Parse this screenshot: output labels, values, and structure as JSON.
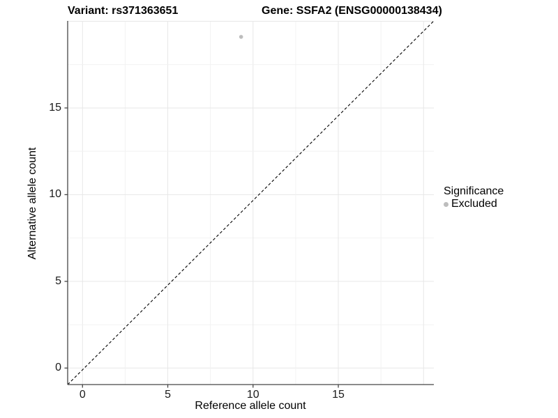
{
  "title": {
    "variant": "Variant: rs371363651",
    "gene": "Gene: SSFA2 (ENSG00000138434)"
  },
  "axes": {
    "x": {
      "label": "Reference allele count",
      "tick_values": [
        0,
        5,
        10,
        15
      ],
      "tick_labels": [
        "0",
        "5",
        "10",
        "15"
      ]
    },
    "y": {
      "label": "Alternative allele count",
      "tick_values": [
        0,
        5,
        10,
        15
      ],
      "tick_labels": [
        "0",
        "5",
        "10",
        "15"
      ]
    }
  },
  "legend": {
    "title": "Significance",
    "items": [
      {
        "label": "Excluded",
        "color": "#bdbdbd"
      }
    ]
  },
  "colors": {
    "point": "#bdbdbd",
    "axis_line": "#464646",
    "grid_major": "#e7e7e7",
    "grid_minor": "#f2f2f2",
    "diagonal": "#000000",
    "background": "#ffffff"
  },
  "chart_data": {
    "type": "scatter",
    "title": "Variant: rs371363651   Gene: SSFA2 (ENSG00000138434)",
    "xlabel": "Reference allele count",
    "ylabel": "Alternative allele count",
    "xlim": [
      -1,
      20.6
    ],
    "ylim": [
      -1,
      20
    ],
    "x_ticks": [
      0,
      5,
      10,
      15
    ],
    "y_ticks": [
      0,
      5,
      10,
      15
    ],
    "grid": "on",
    "grid_interval_major": 5,
    "grid_interval_minor": 2.5,
    "legend_position": "right",
    "series": [
      {
        "name": "Excluded",
        "color": "#bdbdbd",
        "points": [
          {
            "x": 9.3,
            "y": 19.1
          }
        ]
      }
    ],
    "reference_line": {
      "type": "identity",
      "equation": "y = x",
      "style": "dashed",
      "color": "#000000"
    }
  }
}
